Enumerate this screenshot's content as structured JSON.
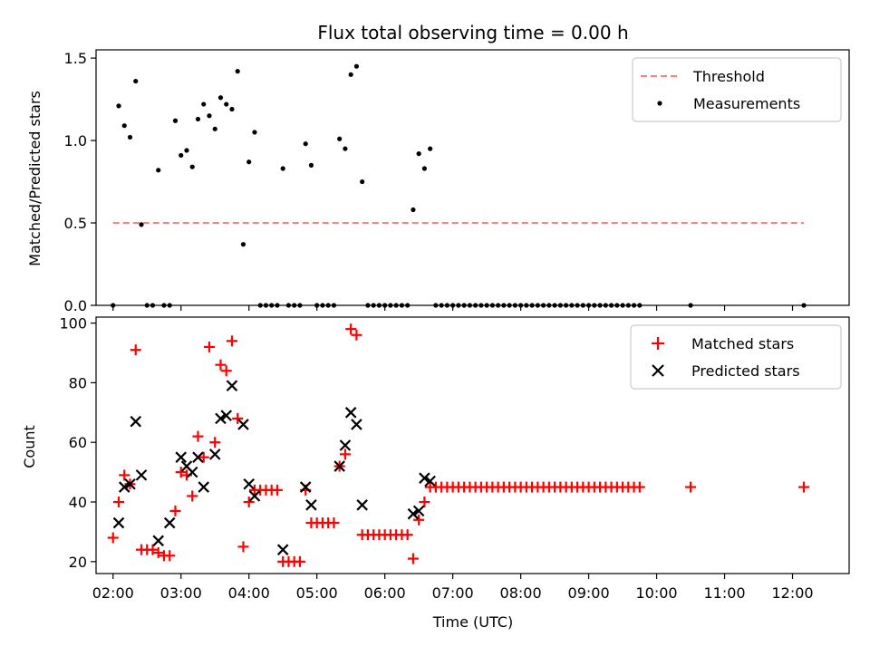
{
  "chart_data": [
    {
      "type": "scatter",
      "title": "Flux total observing time = 0.00 h",
      "xlabel": "",
      "ylabel": "Matched/Predicted stars",
      "ylim": [
        0,
        1.55
      ],
      "yticks": [
        "0.0",
        "0.5",
        "1.0",
        "1.5"
      ],
      "ytick_values": [
        0,
        0.5,
        1.0,
        1.5
      ],
      "legend": {
        "placement": "top-right",
        "entries": [
          "Threshold",
          "Measurements"
        ]
      },
      "threshold": {
        "name": "Threshold",
        "y": 0.5,
        "x_start": "02:00",
        "x_end": "12:10",
        "color": "#ff7f7f",
        "style": "dashed"
      },
      "series": [
        {
          "name": "Measurements",
          "color": "#000000",
          "x": [
            "02:00",
            "02:05",
            "02:10",
            "02:15",
            "02:20",
            "02:25",
            "02:30",
            "02:35",
            "02:40",
            "02:45",
            "02:50",
            "02:55",
            "03:00",
            "03:05",
            "03:10",
            "03:15",
            "03:20",
            "03:25",
            "03:30",
            "03:35",
            "03:40",
            "03:45",
            "03:50",
            "03:55",
            "04:00",
            "04:05",
            "04:10",
            "04:15",
            "04:20",
            "04:25",
            "04:30",
            "04:35",
            "04:40",
            "04:45",
            "04:50",
            "04:55",
            "05:00",
            "05:05",
            "05:10",
            "05:15",
            "05:20",
            "05:25",
            "05:30",
            "05:35",
            "05:40",
            "05:45",
            "05:50",
            "05:55",
            "06:00",
            "06:05",
            "06:10",
            "06:15",
            "06:20",
            "06:25",
            "06:30",
            "06:35",
            "06:40",
            "06:45",
            "06:50",
            "06:55",
            "07:00",
            "07:05",
            "07:10",
            "07:15",
            "07:20",
            "07:25",
            "07:30",
            "07:35",
            "07:40",
            "07:45",
            "07:50",
            "07:55",
            "08:00",
            "08:05",
            "08:10",
            "08:15",
            "08:20",
            "08:25",
            "08:30",
            "08:35",
            "08:40",
            "08:45",
            "08:50",
            "08:55",
            "09:00",
            "09:05",
            "09:10",
            "09:15",
            "09:20",
            "09:25",
            "09:30",
            "09:35",
            "09:40",
            "09:45",
            "10:30",
            "12:10"
          ],
          "y": [
            0,
            1.21,
            1.09,
            1.02,
            1.36,
            0.49,
            0,
            0,
            0.82,
            0,
            0,
            1.12,
            0.91,
            0.94,
            0.84,
            1.13,
            1.22,
            1.15,
            1.07,
            1.26,
            1.22,
            1.19,
            1.42,
            0.37,
            0.87,
            1.05,
            0,
            0,
            0,
            0,
            0.83,
            0,
            0,
            0,
            0.98,
            0.85,
            0,
            0,
            0,
            0,
            1.01,
            0.95,
            1.4,
            1.45,
            0.75,
            0,
            0,
            0,
            0,
            0,
            0,
            0,
            0,
            0.58,
            0.92,
            0.83,
            0.95,
            0,
            0,
            0,
            0,
            0,
            0,
            0,
            0,
            0,
            0,
            0,
            0,
            0,
            0,
            0,
            0,
            0,
            0,
            0,
            0,
            0,
            0,
            0,
            0,
            0,
            0,
            0,
            0,
            0,
            0,
            0,
            0,
            0,
            0,
            0,
            0,
            0,
            0,
            0
          ]
        }
      ]
    },
    {
      "type": "scatter",
      "title": "",
      "xlabel": "Time (UTC)",
      "ylabel": "Count",
      "ylim": [
        16,
        102
      ],
      "yticks": [
        "20",
        "40",
        "60",
        "80",
        "100"
      ],
      "ytick_values": [
        20,
        40,
        60,
        80,
        100
      ],
      "xticks": [
        "02:00",
        "03:00",
        "04:00",
        "05:00",
        "06:00",
        "07:00",
        "08:00",
        "09:00",
        "10:00",
        "11:00",
        "12:00"
      ],
      "xlim": [
        "01:45",
        "12:50"
      ],
      "legend": {
        "placement": "top-right",
        "entries": [
          "Matched stars",
          "Predicted stars"
        ]
      },
      "series": [
        {
          "name": "Matched stars",
          "color": "#ff0000",
          "marker": "+",
          "x": [
            "02:00",
            "02:05",
            "02:10",
            "02:15",
            "02:20",
            "02:25",
            "02:30",
            "02:35",
            "02:40",
            "02:45",
            "02:50",
            "02:55",
            "03:00",
            "03:05",
            "03:10",
            "03:15",
            "03:20",
            "03:25",
            "03:30",
            "03:35",
            "03:40",
            "03:45",
            "03:50",
            "03:55",
            "04:00",
            "04:05",
            "04:10",
            "04:15",
            "04:20",
            "04:25",
            "04:30",
            "04:35",
            "04:40",
            "04:45",
            "04:50",
            "04:55",
            "05:00",
            "05:05",
            "05:10",
            "05:15",
            "05:20",
            "05:25",
            "05:30",
            "05:35",
            "05:40",
            "05:45",
            "05:50",
            "05:55",
            "06:00",
            "06:05",
            "06:10",
            "06:15",
            "06:20",
            "06:25",
            "06:30",
            "06:35",
            "06:40",
            "06:45",
            "06:50",
            "06:55",
            "07:00",
            "07:05",
            "07:10",
            "07:15",
            "07:20",
            "07:25",
            "07:30",
            "07:35",
            "07:40",
            "07:45",
            "07:50",
            "07:55",
            "08:00",
            "08:05",
            "08:10",
            "08:15",
            "08:20",
            "08:25",
            "08:30",
            "08:35",
            "08:40",
            "08:45",
            "08:50",
            "08:55",
            "09:00",
            "09:05",
            "09:10",
            "09:15",
            "09:20",
            "09:25",
            "09:30",
            "09:35",
            "09:40",
            "09:45",
            "10:30",
            "12:10"
          ],
          "y": [
            28,
            40,
            49,
            46,
            91,
            24,
            24,
            24,
            23,
            22,
            22,
            37,
            50,
            49,
            42,
            62,
            55,
            92,
            60,
            86,
            84,
            94,
            68,
            25,
            40,
            44,
            44,
            44,
            44,
            44,
            20,
            20,
            20,
            20,
            44,
            33,
            33,
            33,
            33,
            33,
            52,
            56,
            98,
            96,
            29,
            29,
            29,
            29,
            29,
            29,
            29,
            29,
            29,
            21,
            34,
            40,
            45,
            45,
            45,
            45,
            45,
            45,
            45,
            45,
            45,
            45,
            45,
            45,
            45,
            45,
            45,
            45,
            45,
            45,
            45,
            45,
            45,
            45,
            45,
            45,
            45,
            45,
            45,
            45,
            45,
            45,
            45,
            45,
            45,
            45,
            45,
            45,
            45,
            45,
            45,
            45
          ]
        },
        {
          "name": "Predicted stars",
          "color": "#000000",
          "marker": "x",
          "x": [
            "02:05",
            "02:10",
            "02:15",
            "02:20",
            "02:25",
            "02:40",
            "02:50",
            "03:00",
            "03:05",
            "03:10",
            "03:15",
            "03:20",
            "03:30",
            "03:35",
            "03:40",
            "03:45",
            "03:55",
            "04:00",
            "04:05",
            "04:30",
            "04:50",
            "04:55",
            "05:20",
            "05:25",
            "05:30",
            "05:35",
            "05:40",
            "06:25",
            "06:30",
            "06:35",
            "06:40"
          ],
          "y": [
            33,
            45,
            46,
            67,
            49,
            27,
            33,
            55,
            52,
            50,
            55,
            45,
            56,
            68,
            69,
            79,
            66,
            46,
            42,
            24,
            45,
            39,
            52,
            59,
            70,
            66,
            39,
            36,
            37,
            48,
            47
          ]
        }
      ]
    }
  ]
}
